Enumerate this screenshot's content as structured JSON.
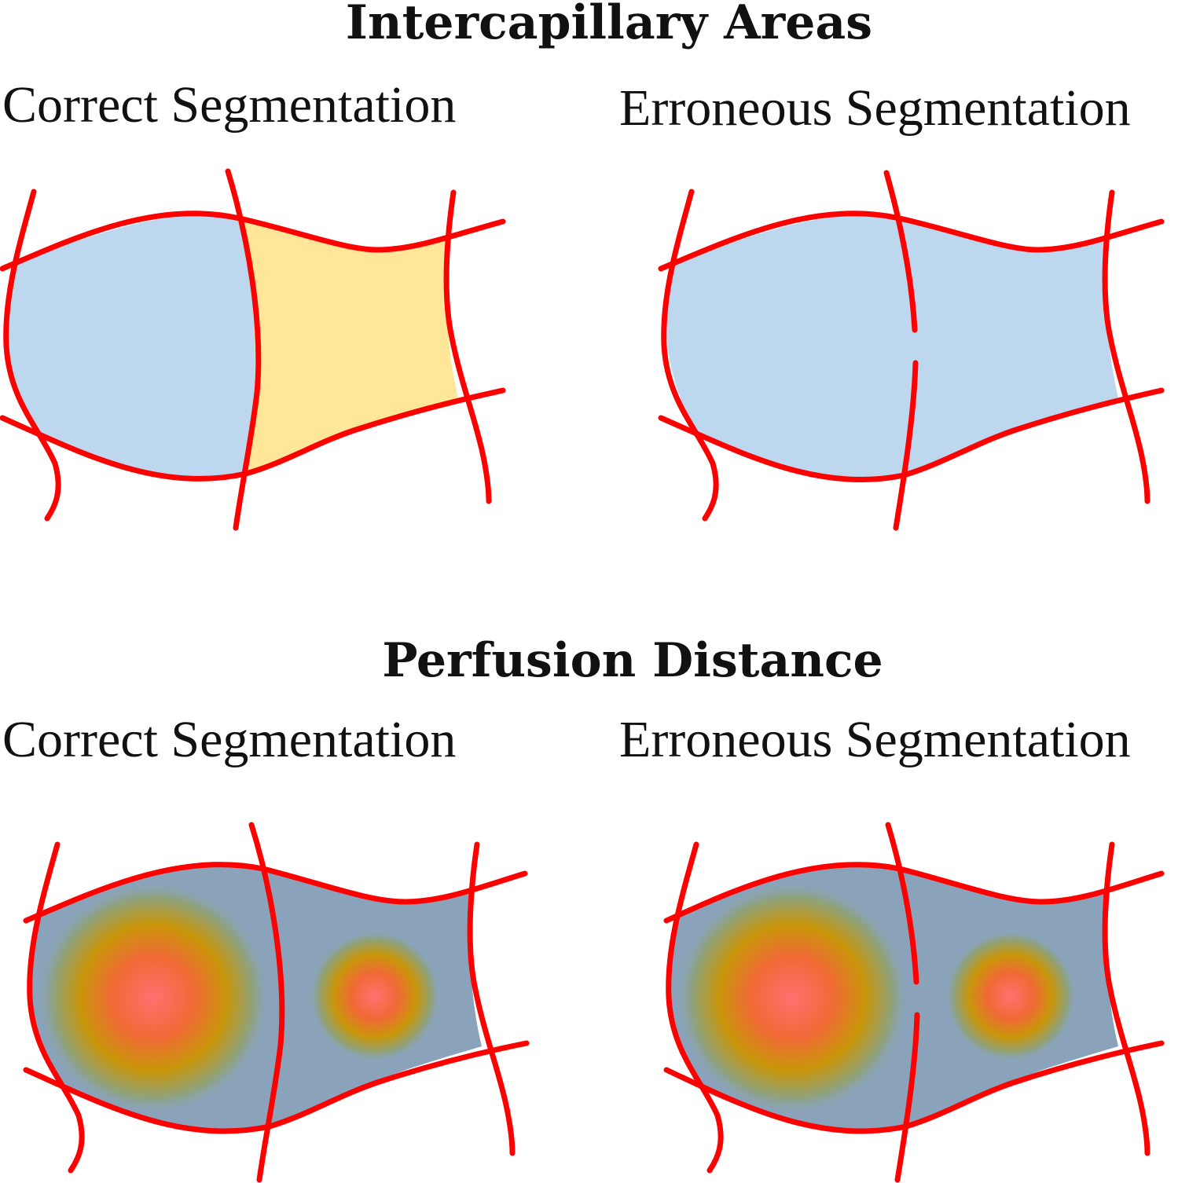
{
  "sections": [
    {
      "title": "Intercapillary Areas",
      "panels": [
        {
          "label": "Correct Segmentation",
          "fill": "split",
          "gap": false
        },
        {
          "label": "Erroneous Segmentation",
          "fill": "merged",
          "gap": true
        }
      ]
    },
    {
      "title": "Perfusion Distance",
      "panels": [
        {
          "label": "Correct Segmentation",
          "fill": "gradient",
          "gap": false
        },
        {
          "label": "Erroneous Segmentation",
          "fill": "gradient",
          "gap": true
        }
      ]
    }
  ],
  "colors": {
    "capillary": "#ff0000",
    "area_blue": "#bdd7ee",
    "area_yellow": "#ffe699",
    "distance_base": "#8aa3bb",
    "distance_mid": "#c9960a",
    "distance_hot": "#ff7070"
  }
}
